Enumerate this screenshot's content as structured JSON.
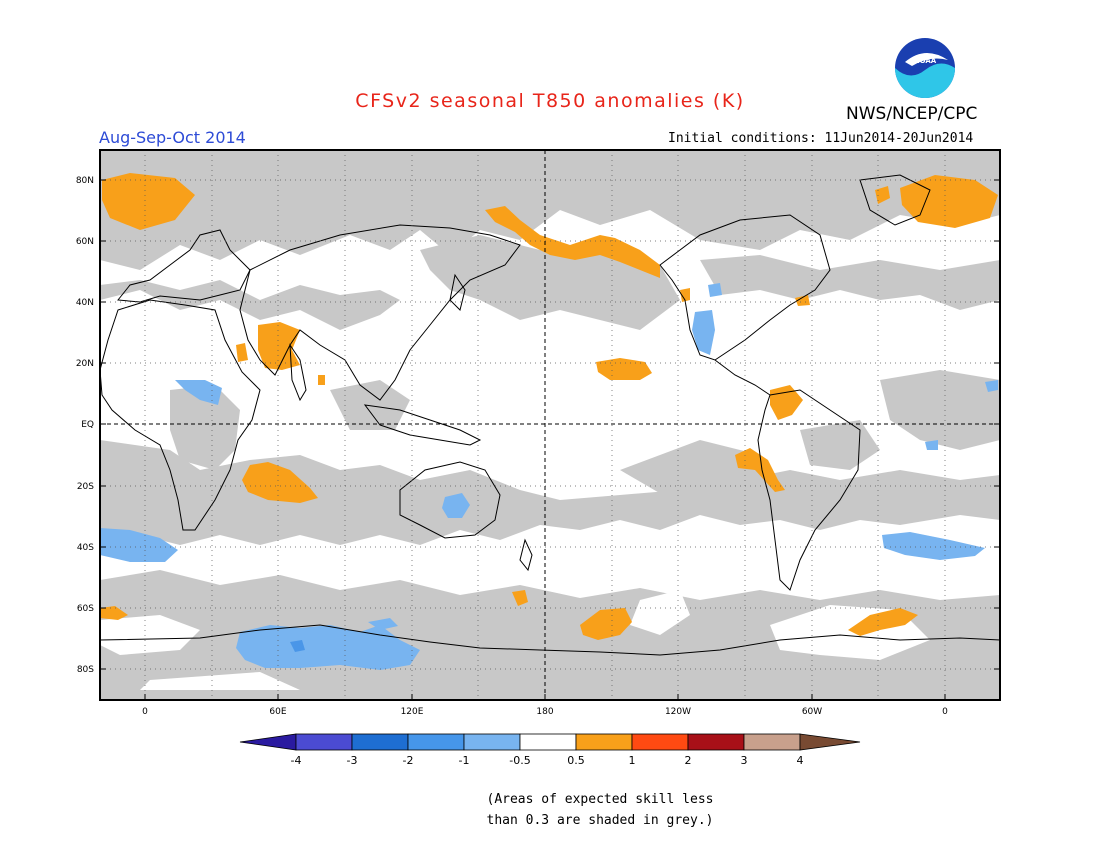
{
  "header": {
    "title": "CFSv2 seasonal T850 anomalies (K)",
    "agency": "NWS/NCEP/CPC",
    "agency_logo_text": "NOAA",
    "season": "Aug-Sep-Oct 2014",
    "initial_conditions": "Initial conditions: 11Jun2014-20Jun2014"
  },
  "map": {
    "projection": "cylindrical equidistant, dateline centered",
    "lat_labels": [
      "80N",
      "60N",
      "40N",
      "20N",
      "EQ",
      "20S",
      "40S",
      "60S",
      "80S"
    ],
    "lon_labels": [
      "0",
      "60E",
      "120E",
      "180",
      "120W",
      "60W",
      "0"
    ],
    "grid": "dotted",
    "colors": {
      "skill_mask": "#c8c8c8",
      "warm_0_5_to_1": "#f8a01a",
      "cool_-1_to_-0_5": "#78b4f0",
      "cool_-2_to_-1": "#4a96e8",
      "coast": "#000000"
    }
  },
  "colorbar": {
    "tick_labels": [
      "-4",
      "-3",
      "-2",
      "-1",
      "-0.5",
      "0.5",
      "1",
      "2",
      "3",
      "4"
    ],
    "colors": [
      "#2a1aa0",
      "#4b4bd2",
      "#1e6ed2",
      "#4696ea",
      "#78b4f0",
      "#ffffff",
      "#f8a01a",
      "#ff4a12",
      "#a81018",
      "#c8a08c",
      "#784a32"
    ]
  },
  "footnote": {
    "line1": "(Areas of expected skill less",
    "line2": "than 0.3 are shaded in grey.)"
  }
}
